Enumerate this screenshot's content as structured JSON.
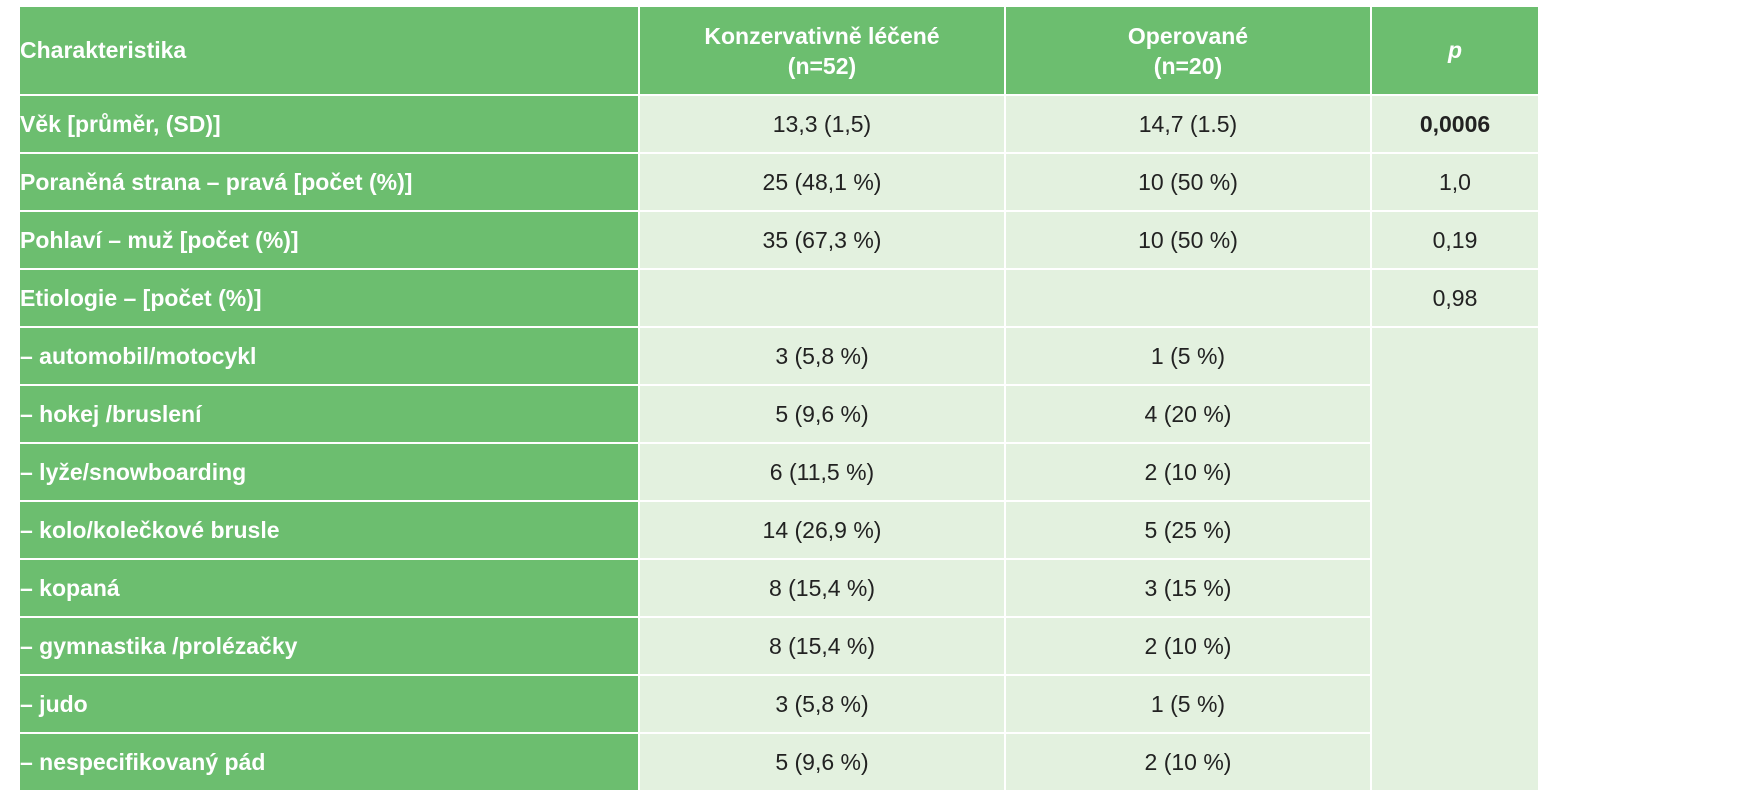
{
  "header": {
    "characteristic": "Charakteristika",
    "conservative_line1": "Konzervativně léčené",
    "conservative_line2": "(n=52)",
    "operated_line1": "Operované",
    "operated_line2": "(n=20)",
    "p": "p"
  },
  "rows": [
    {
      "label": "Věk [průměr, (SD)]",
      "conservative": "13,3 (1,5)",
      "operated": "14,7 (1.5)",
      "p": "0,0006"
    },
    {
      "label": "Poraněná strana – pravá [počet (%)]",
      "conservative": "25 (48,1 %)",
      "operated": "10 (50 %)",
      "p": "1,0"
    },
    {
      "label": "Pohlaví – muž [počet (%)]",
      "conservative": "35 (67,3 %)",
      "operated": "10 (50 %)",
      "p": "0,19"
    },
    {
      "label": "Etiologie – [počet (%)]",
      "conservative": "",
      "operated": "",
      "p": "0,98"
    },
    {
      "label": "– automobil/motocykl",
      "conservative": "3 (5,8 %)",
      "operated": "1 (5 %)"
    },
    {
      "label": "– hokej /bruslení",
      "conservative": "5 (9,6 %)",
      "operated": "4 (20 %)"
    },
    {
      "label": "– lyže/snowboarding",
      "conservative": "6 (11,5 %)",
      "operated": "2 (10 %)"
    },
    {
      "label": "– kolo/kolečkové brusle",
      "conservative": "14 (26,9 %)",
      "operated": "5 (25 %)"
    },
    {
      "label": "– kopaná",
      "conservative": "8 (15,4 %)",
      "operated": "3 (15 %)"
    },
    {
      "label": "– gymnastika /prolézačky",
      "conservative": "8 (15,4 %)",
      "operated": "2 (10 %)"
    },
    {
      "label": "– judo",
      "conservative": "3 (5,8 %)",
      "operated": "1 (5 %)"
    },
    {
      "label": "– nespecifikovaný pád",
      "conservative": "5 (9,6 %)",
      "operated": "2 (10 %)"
    }
  ],
  "colors": {
    "header_green": "#6cbe6f",
    "cell_light_green": "#e3f1df",
    "text_dark": "#222222",
    "border": "#ffffff"
  }
}
